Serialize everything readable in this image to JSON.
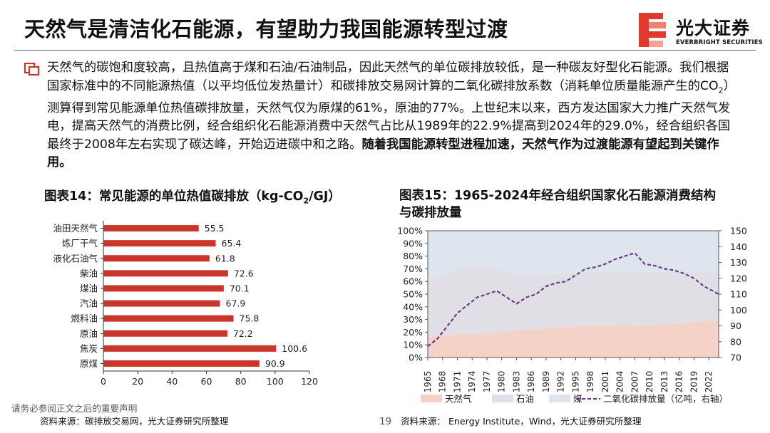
{
  "header": {
    "title": "天然气是清洁化石能源，有望助力我国能源转型过渡",
    "logo_cn": "光大证券",
    "logo_en": "EVERBRIGHT SECURITIES"
  },
  "body": {
    "p1": "天然气的碳饱和度较高，且热值高于煤和石油/石油制品，因此天然气的单位碳排放较低，是一种碳友好型化石能源。我们根据国家标准中的不同能源热值（以平均低位发热量计）和碳排放交易网计算的二氧化碳排放系数（消耗单位质量能源产生的CO",
    "p1_sub": "2",
    "p2": "）测算得到常见能源单位热值碳排放量，天然气仅为原煤的61%，原油的77%。上世纪末以来，西方发达国家大力推广天然气发电，提高天然气的消费比例，经合组织化石能源消费中天然气占比从1989年的22.9%提高到2024年的29.0%，经合组织各国最终于2008年左右实现了碳达峰，开始迈进碳中和之路。",
    "p_bold": "随着我国能源转型进程加速，天然气作为过渡能源有望起到关键作用。"
  },
  "fig14": {
    "title_a": "图表14：常见能源的单位热值碳排放（kg-CO",
    "title_sub": "2",
    "title_b": "/GJ）",
    "source": "资料来源：碳排放交易网，光大证券研究所整理"
  },
  "fig15": {
    "title_line1": "图表15：1965-2024年经合组织国家化石能源消费结构",
    "title_line2": "与碳排放量",
    "source": "资料来源：  Energy Institute，Wind，光大证券研究所整理"
  },
  "footer": {
    "disclaimer": "请务必参阅正文之后的重要声明",
    "page": "19"
  },
  "chart_data": [
    {
      "type": "bar",
      "orientation": "horizontal",
      "categories": [
        "油田天然气",
        "炼厂干气",
        "液化石油气",
        "柴油",
        "煤油",
        "汽油",
        "燃料油",
        "原油",
        "焦炭",
        "原煤"
      ],
      "values": [
        55.5,
        65.4,
        61.8,
        72.6,
        70.1,
        67.9,
        75.8,
        72.2,
        100.6,
        90.9
      ],
      "value_labels": [
        "55.5",
        "65.4",
        "61.8",
        "72.6",
        "70.1",
        "67.9",
        "75.8",
        "72.2",
        "100.6",
        "90.9"
      ],
      "xlim": [
        0,
        120
      ],
      "xticks": [
        "0",
        "20",
        "40",
        "60",
        "80",
        "100",
        "120"
      ],
      "bar_color": "#c9362b"
    },
    {
      "type": "area",
      "x_ticks": [
        "1965",
        "1968",
        "1971",
        "1974",
        "1977",
        "1980",
        "1983",
        "1986",
        "1989",
        "1992",
        "1995",
        "1998",
        "2001",
        "2004",
        "2007",
        "2010",
        "2013",
        "2016",
        "2019",
        "2022"
      ],
      "x_range": [
        1965,
        2024
      ],
      "ylim_left": [
        0,
        100
      ],
      "yticks_left": [
        "0%",
        "10%",
        "20%",
        "30%",
        "40%",
        "50%",
        "60%",
        "70%",
        "80%",
        "90%",
        "100%"
      ],
      "ylim_right": [
        70,
        150
      ],
      "yticks_right": [
        "70",
        "80",
        "90",
        "100",
        "110",
        "120",
        "130",
        "140",
        "150"
      ],
      "years": [
        1965,
        1967,
        1969,
        1971,
        1973,
        1975,
        1977,
        1979,
        1981,
        1983,
        1985,
        1987,
        1989,
        1991,
        1993,
        1995,
        1997,
        1999,
        2001,
        2003,
        2005,
        2007,
        2009,
        2011,
        2013,
        2015,
        2017,
        2019,
        2021,
        2024
      ],
      "series": [
        {
          "name": "天然气",
          "color": "#f4d2c8",
          "values": [
            16,
            17,
            18,
            18.5,
            18.5,
            18.5,
            19,
            19.5,
            20.5,
            21,
            22,
            22.5,
            22.9,
            23.5,
            24,
            24.5,
            24.5,
            24.8,
            25.2,
            25,
            25,
            25,
            25.3,
            25.5,
            26,
            26.5,
            27.2,
            28,
            29,
            29
          ]
        },
        {
          "name": "石油",
          "color": "#e0dfe6",
          "values": [
            60,
            64,
            67,
            70,
            71.5,
            70.5,
            71.5,
            70,
            67.5,
            65.5,
            64.5,
            65,
            66,
            66.5,
            66.5,
            66.8,
            67.3,
            67.5,
            67.5,
            67.3,
            67.7,
            67.5,
            67.3,
            67,
            67.2,
            67.5,
            68,
            68.3,
            68,
            68
          ]
        },
        {
          "name": "煤",
          "color": "#dde6ee",
          "values": [
            100,
            100,
            100,
            100,
            100,
            100,
            100,
            100,
            100,
            100,
            100,
            100,
            100,
            100,
            100,
            100,
            100,
            100,
            100,
            100,
            100,
            100,
            100,
            100,
            100,
            100,
            100,
            100,
            100,
            100
          ]
        },
        {
          "name": "二氧化碳排放量（亿吨，右轴）",
          "color": "#6b3a8a",
          "axis": "right",
          "values": [
            77,
            82,
            90,
            98,
            103,
            108,
            110,
            112,
            108,
            104,
            108,
            110,
            115,
            117,
            118,
            122,
            126,
            127,
            129,
            132,
            134,
            136,
            129,
            128,
            126,
            125,
            123,
            120,
            115,
            110
          ]
        }
      ]
    }
  ]
}
